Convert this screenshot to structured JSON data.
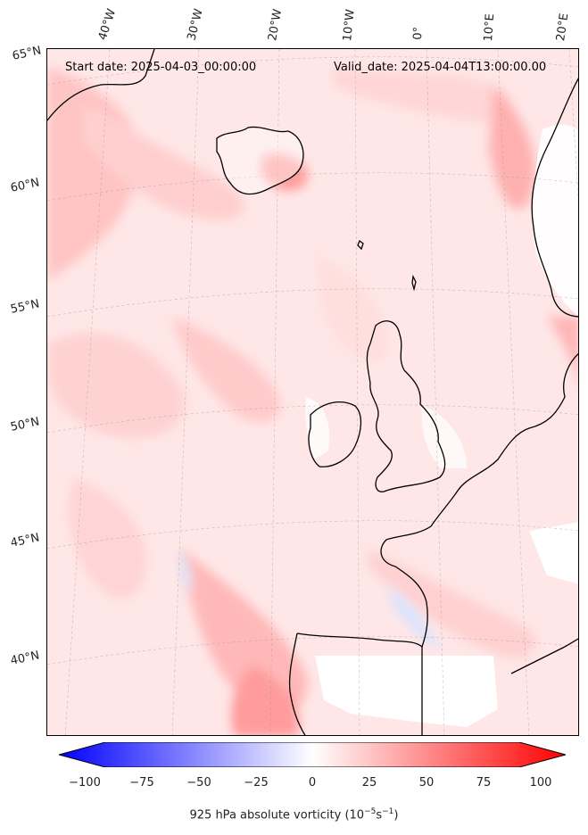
{
  "map": {
    "start_label": "Start date: 2025-04-03_00:00:00",
    "valid_label": "Valid_date: 2025-04-04T13:00:00.00",
    "lon_labels": [
      "40°W",
      "30°W",
      "20°W",
      "10°W",
      "0°",
      "10°E",
      "20°E"
    ],
    "lat_labels": [
      "65°N",
      "60°N",
      "55°N",
      "50°N",
      "45°N",
      "40°N"
    ],
    "colors": {
      "positive": "#ff0000",
      "negative": "#0000ff",
      "neutral": "#ffffff",
      "coast": "#000000"
    }
  },
  "colorbar": {
    "ticks": [
      "−100",
      "−75",
      "−50",
      "−25",
      "0",
      "25",
      "50",
      "75",
      "100"
    ],
    "range": [
      -100,
      100
    ],
    "title": "925 hPa absolute vorticity (10",
    "title_sup1": "−5",
    "title_mid": "s",
    "title_sup2": "−1",
    "title_end": ")"
  }
}
